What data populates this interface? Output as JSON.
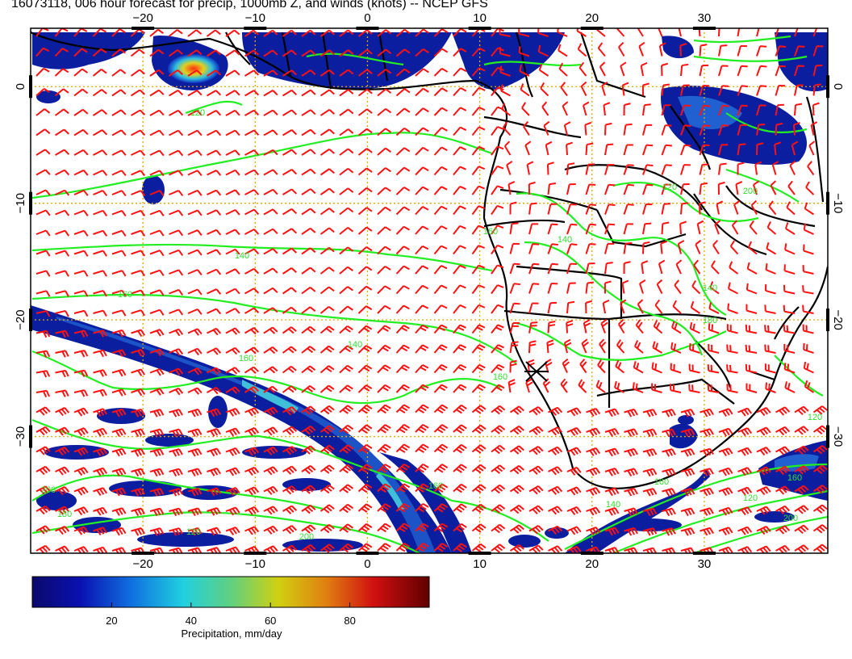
{
  "title": "16073118, 006 hour forecast for precip, 1000mb Z, and winds (knots) -- NCEP GFS",
  "map": {
    "lon_range": [
      -30,
      41
    ],
    "lat_range": [
      -40,
      5
    ],
    "lon_ticks": [
      -20,
      -10,
      0,
      10,
      20,
      30
    ],
    "lat_ticks": [
      0,
      -10,
      -20,
      -30
    ],
    "lon_tick_labels": [
      "−20",
      "−10",
      "0",
      "10",
      "20",
      "30"
    ],
    "lat_tick_labels": [
      "0",
      "−10",
      "−20",
      "−30"
    ],
    "grid": true,
    "contour_labels": [
      "120",
      "140",
      "160",
      "160",
      "140",
      "160",
      "160",
      "140",
      "120",
      "200",
      "180",
      "160",
      "120",
      "200",
      "140",
      "160",
      "120",
      "200",
      "180",
      "140",
      "160",
      "120",
      "200"
    ],
    "colors": {
      "contour": "#22ee22",
      "barb": "#ff1111",
      "coast": "#000000",
      "grid": "#ddaa00",
      "precip_low": "#0a1a8a",
      "precip_mid": "#3aa0e0",
      "precip_high": "#e02020"
    }
  },
  "colorbar": {
    "label": "Precipitation, mm/day",
    "ticks": [
      "20",
      "40",
      "60",
      "80"
    ],
    "range": [
      0,
      100
    ]
  }
}
